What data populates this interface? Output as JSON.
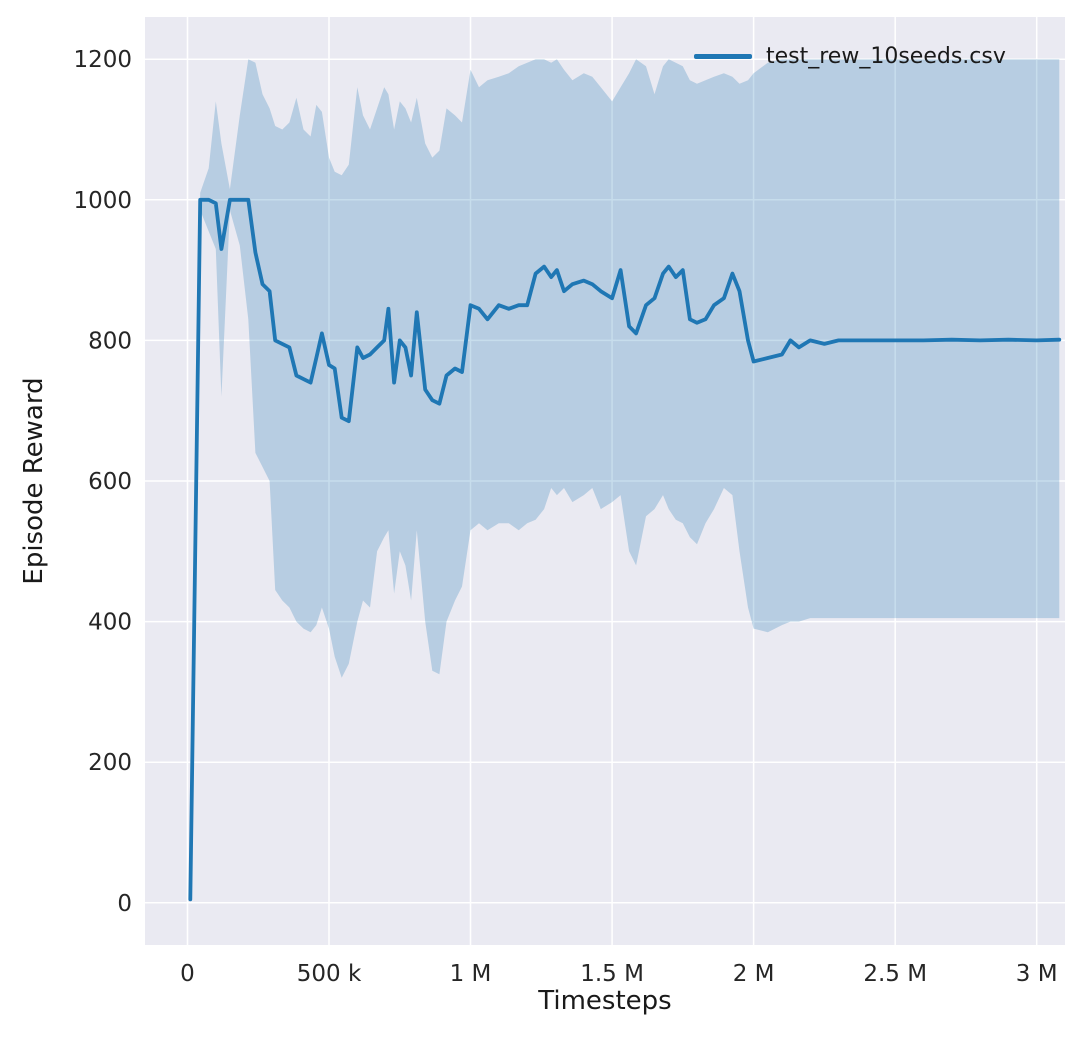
{
  "figure": {
    "background": "#ffffff",
    "axes_background": "#eaeaf2",
    "grid_color": "#ffffff",
    "tick_color": "#262626"
  },
  "legend": {
    "label": "test_rew_10seeds.csv",
    "position": "upper right"
  },
  "chart_data": {
    "type": "line",
    "title": "",
    "xlabel": "Timesteps",
    "ylabel": "Episode Reward",
    "xlim": [
      -150000,
      3100000
    ],
    "ylim": [
      -60,
      1260
    ],
    "grid": true,
    "legend_position": "upper right",
    "x_ticks": [
      {
        "value": 0,
        "label": "0"
      },
      {
        "value": 500000,
        "label": "500 k"
      },
      {
        "value": 1000000,
        "label": "1 M"
      },
      {
        "value": 1500000,
        "label": "1.5 M"
      },
      {
        "value": 2000000,
        "label": "2 M"
      },
      {
        "value": 2500000,
        "label": "2.5 M"
      },
      {
        "value": 3000000,
        "label": "3 M"
      }
    ],
    "y_ticks": [
      {
        "value": 0,
        "label": "0"
      },
      {
        "value": 200,
        "label": "200"
      },
      {
        "value": 400,
        "label": "400"
      },
      {
        "value": 600,
        "label": "600"
      },
      {
        "value": 800,
        "label": "800"
      },
      {
        "value": 1000,
        "label": "1000"
      },
      {
        "value": 1200,
        "label": "1200"
      }
    ],
    "series": [
      {
        "name": "test_rew_10seeds.csv",
        "color": "#1f77b4",
        "band_opacity": 0.25,
        "x": [
          10000,
          45000,
          75000,
          100000,
          120000,
          150000,
          185000,
          215000,
          240000,
          265000,
          290000,
          310000,
          335000,
          360000,
          385000,
          410000,
          435000,
          455000,
          475000,
          500000,
          520000,
          545000,
          570000,
          600000,
          620000,
          645000,
          670000,
          695000,
          710000,
          730000,
          750000,
          770000,
          790000,
          810000,
          840000,
          865000,
          890000,
          915000,
          945000,
          970000,
          1000000,
          1030000,
          1060000,
          1100000,
          1135000,
          1170000,
          1200000,
          1230000,
          1260000,
          1285000,
          1305000,
          1330000,
          1360000,
          1400000,
          1430000,
          1460000,
          1500000,
          1530000,
          1560000,
          1585000,
          1620000,
          1650000,
          1680000,
          1700000,
          1725000,
          1750000,
          1775000,
          1800000,
          1830000,
          1860000,
          1895000,
          1925000,
          1950000,
          1980000,
          2000000,
          2050000,
          2100000,
          2130000,
          2160000,
          2200000,
          2250000,
          2300000,
          2400000,
          2500000,
          2600000,
          2700000,
          2800000,
          2900000,
          3000000,
          3080000
        ],
        "mean": [
          5,
          1000,
          1000,
          995,
          930,
          1000,
          1000,
          1000,
          925,
          880,
          870,
          800,
          795,
          790,
          750,
          745,
          740,
          775,
          810,
          765,
          760,
          690,
          685,
          790,
          775,
          780,
          790,
          800,
          845,
          740,
          800,
          790,
          750,
          840,
          730,
          715,
          710,
          750,
          760,
          755,
          850,
          845,
          830,
          850,
          845,
          850,
          850,
          895,
          905,
          890,
          900,
          870,
          880,
          885,
          880,
          870,
          860,
          900,
          820,
          810,
          850,
          860,
          895,
          905,
          890,
          900,
          830,
          825,
          830,
          850,
          860,
          895,
          870,
          800,
          770,
          775,
          780,
          800,
          790,
          800,
          795,
          800,
          800,
          800,
          800,
          801,
          800,
          801,
          800,
          801
        ],
        "band_low": [
          5,
          985,
          955,
          930,
          720,
          985,
          935,
          830,
          640,
          620,
          600,
          445,
          430,
          420,
          400,
          390,
          385,
          395,
          420,
          390,
          350,
          320,
          340,
          400,
          430,
          420,
          500,
          520,
          530,
          440,
          500,
          480,
          430,
          530,
          400,
          330,
          325,
          400,
          430,
          450,
          530,
          540,
          530,
          540,
          540,
          530,
          540,
          545,
          560,
          590,
          580,
          590,
          570,
          580,
          590,
          560,
          570,
          580,
          500,
          480,
          550,
          560,
          580,
          560,
          545,
          540,
          520,
          510,
          540,
          560,
          590,
          580,
          500,
          420,
          390,
          385,
          395,
          400,
          400,
          405,
          405,
          405,
          405,
          405,
          405,
          405,
          405,
          405,
          405,
          405
        ],
        "band_high": [
          5,
          1010,
          1045,
          1140,
          1080,
          1015,
          1120,
          1200,
          1195,
          1150,
          1130,
          1105,
          1100,
          1110,
          1145,
          1100,
          1090,
          1135,
          1125,
          1060,
          1040,
          1035,
          1050,
          1160,
          1120,
          1100,
          1130,
          1160,
          1150,
          1100,
          1140,
          1130,
          1110,
          1145,
          1080,
          1060,
          1070,
          1130,
          1120,
          1110,
          1185,
          1160,
          1170,
          1175,
          1180,
          1190,
          1195,
          1200,
          1200,
          1195,
          1200,
          1185,
          1170,
          1180,
          1175,
          1160,
          1140,
          1160,
          1180,
          1200,
          1190,
          1150,
          1190,
          1200,
          1195,
          1190,
          1170,
          1165,
          1170,
          1175,
          1180,
          1175,
          1165,
          1170,
          1180,
          1195,
          1200,
          1200,
          1200,
          1200,
          1200,
          1200,
          1200,
          1200,
          1200,
          1200,
          1200,
          1200,
          1200,
          1200
        ]
      }
    ]
  }
}
